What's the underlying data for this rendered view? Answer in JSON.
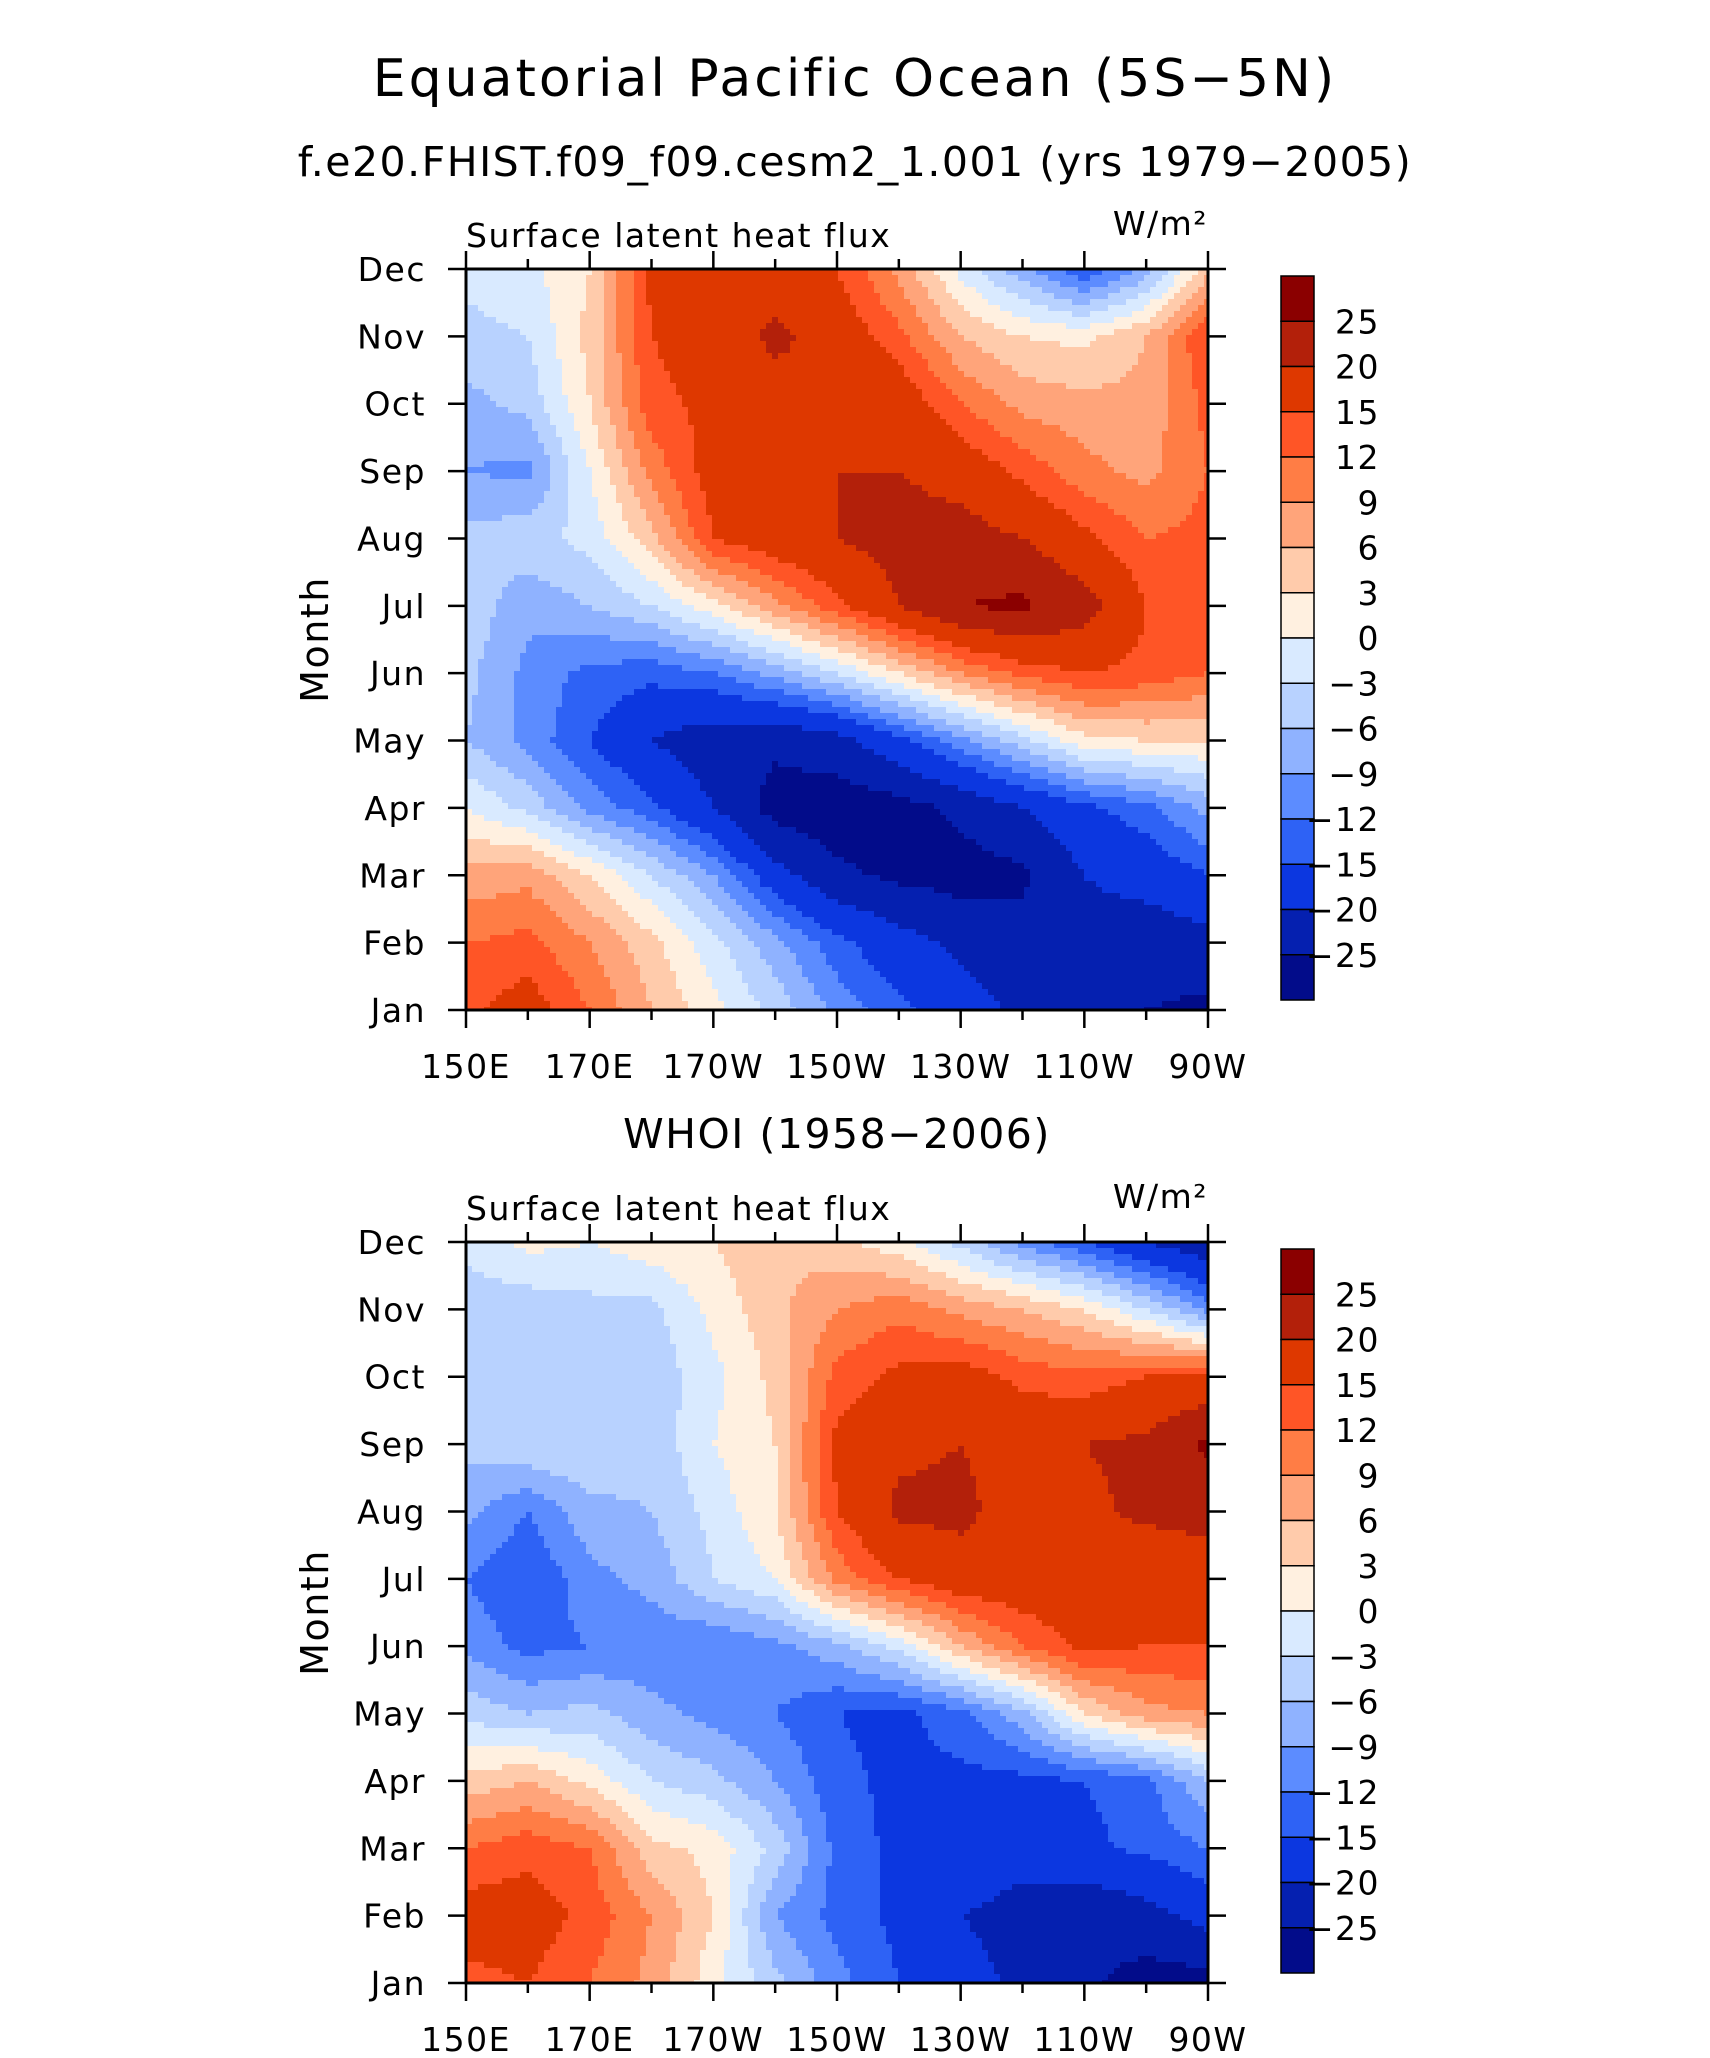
{
  "figure": {
    "title": "Equatorial Pacific Ocean (5S−5N)",
    "subtitle": "f.e20.FHIST.f09_f09.cesm2_1.001 (yrs 1979−2005)"
  },
  "chart_data": [
    {
      "type": "heatmap",
      "title": "",
      "left_label": "Surface latent heat flux",
      "right_label": "W/m²",
      "xlabel": "",
      "ylabel": "Month",
      "x_categories": [
        "150E",
        "170E",
        "170W",
        "150W",
        "130W",
        "110W",
        "90W"
      ],
      "x_positions": [
        150,
        170,
        190,
        210,
        230,
        250,
        270
      ],
      "xlim": [
        150,
        270
      ],
      "y_categories": [
        "Jan",
        "Feb",
        "Mar",
        "Apr",
        "May",
        "Jun",
        "Jul",
        "Aug",
        "Sep",
        "Oct",
        "Nov",
        "Dec"
      ],
      "colorbar_levels": [
        "25",
        "20",
        "15",
        "12",
        "9",
        "6",
        "3",
        "0",
        "−3",
        "−6",
        "−9",
        "−12",
        "−15",
        "−20",
        "−25"
      ],
      "colorbar_colors": [
        "#8b0000",
        "#b3200a",
        "#de3800",
        "#ff5526",
        "#ff7d45",
        "#ffa47a",
        "#ffcbab",
        "#fff0e0",
        "#d9eaff",
        "#b8d2ff",
        "#8fb2ff",
        "#5c8cff",
        "#2e62f5",
        "#0c37e0",
        "#0520b0",
        "#020c8a"
      ],
      "grid_x": [
        150,
        160,
        170,
        180,
        190,
        200,
        210,
        220,
        230,
        240,
        250,
        260,
        270
      ],
      "grid_y": [
        "Jan",
        "Feb",
        "Mar",
        "Apr",
        "May",
        "Jun",
        "Jul",
        "Aug",
        "Sep",
        "Oct",
        "Nov",
        "Dec"
      ],
      "values": [
        [
          14,
          17,
          12,
          6,
          1,
          -4,
          -10,
          -14,
          -18,
          -21,
          -24,
          -25,
          -26
        ],
        [
          12,
          13,
          9,
          4,
          -2,
          -8,
          -14,
          -18,
          -21,
          -23,
          -22,
          -23,
          -22
        ],
        [
          7,
          8,
          3,
          -3,
          -9,
          -18,
          -24,
          -26,
          -27,
          -26,
          -20,
          -18,
          -15
        ],
        [
          0,
          -4,
          -10,
          -14,
          -20,
          -27,
          -28,
          -27,
          -24,
          -20,
          -16,
          -13,
          -8
        ],
        [
          -6,
          -10,
          -15,
          -20,
          -23,
          -24,
          -22,
          -16,
          -10,
          -4,
          2,
          3,
          3
        ],
        [
          -5,
          -10,
          -13,
          -14,
          -12,
          -8,
          -3,
          3,
          9,
          13,
          15,
          14,
          12
        ],
        [
          -4,
          -8,
          -6,
          -3,
          2,
          8,
          14,
          20,
          25,
          26,
          22,
          15,
          12
        ],
        [
          -5,
          -4,
          -2,
          5,
          15,
          18,
          20,
          22,
          22,
          20,
          16,
          12,
          13
        ],
        [
          -9,
          -10,
          0,
          10,
          17,
          18,
          20,
          20,
          18,
          14,
          10,
          8,
          12
        ],
        [
          -7,
          -5,
          3,
          14,
          16,
          18,
          20,
          18,
          12,
          8,
          7,
          7,
          13
        ],
        [
          -4,
          -3,
          4,
          15,
          17,
          21,
          18,
          13,
          6,
          3,
          2,
          6,
          15
        ],
        [
          -2,
          -1,
          3,
          16,
          17,
          18,
          15,
          8,
          -1,
          -8,
          -15,
          -8,
          5
        ]
      ]
    },
    {
      "type": "heatmap",
      "title": "WHOI (1958−2006)",
      "left_label": "Surface latent heat flux",
      "right_label": "W/m²",
      "xlabel": "",
      "ylabel": "Month",
      "x_categories": [
        "150E",
        "170E",
        "170W",
        "150W",
        "130W",
        "110W",
        "90W"
      ],
      "x_positions": [
        150,
        170,
        190,
        210,
        230,
        250,
        270
      ],
      "xlim": [
        150,
        270
      ],
      "y_categories": [
        "Jan",
        "Feb",
        "Mar",
        "Apr",
        "May",
        "Jun",
        "Jul",
        "Aug",
        "Sep",
        "Oct",
        "Nov",
        "Dec"
      ],
      "colorbar_levels": [
        "25",
        "20",
        "15",
        "12",
        "9",
        "6",
        "3",
        "0",
        "−3",
        "−6",
        "−9",
        "−12",
        "−15",
        "−20",
        "−25"
      ],
      "colorbar_colors": [
        "#8b0000",
        "#b3200a",
        "#de3800",
        "#ff5526",
        "#ff7d45",
        "#ffa47a",
        "#ffcbab",
        "#fff0e0",
        "#d9eaff",
        "#b8d2ff",
        "#8fb2ff",
        "#5c8cff",
        "#2e62f5",
        "#0c37e0",
        "#0520b0",
        "#020c8a"
      ],
      "grid_x": [
        150,
        160,
        170,
        180,
        190,
        200,
        210,
        220,
        230,
        240,
        250,
        260,
        270
      ],
      "grid_y": [
        "Jan",
        "Feb",
        "Mar",
        "Apr",
        "May",
        "Jun",
        "Jul",
        "Aug",
        "Sep",
        "Oct",
        "Nov",
        "Dec"
      ],
      "values": [
        [
          14,
          15,
          12,
          8,
          1,
          -5,
          -11,
          -15,
          -18,
          -21,
          -24,
          -27,
          -27
        ],
        [
          17,
          17,
          14,
          9,
          3,
          -9,
          -13,
          -16,
          -20,
          -22,
          -24,
          -22,
          -18
        ],
        [
          12,
          14,
          12,
          4,
          2,
          -4,
          -13,
          -16,
          -16,
          -18,
          -16,
          -14,
          -12
        ],
        [
          4,
          6,
          2,
          -3,
          -5,
          -9,
          -14,
          -16,
          -16,
          -16,
          -15,
          -13,
          -6
        ],
        [
          -4,
          -6,
          -5,
          -8,
          -10,
          -12,
          -15,
          -16,
          -13,
          -7,
          3,
          8,
          9
        ],
        [
          -10,
          -13,
          -12,
          -11,
          -12,
          -10,
          -7,
          -2,
          6,
          12,
          16,
          15,
          15
        ],
        [
          -12,
          -15,
          -10,
          -8,
          -3,
          0,
          10,
          15,
          18,
          18,
          18,
          16,
          17
        ],
        [
          -8,
          -12,
          -7,
          -6,
          -2,
          3,
          15,
          21,
          21,
          18,
          19,
          21,
          22
        ],
        [
          -5,
          -3,
          -3,
          -5,
          0,
          3,
          16,
          19,
          20,
          18,
          20,
          21,
          26
        ],
        [
          -4,
          -3,
          -4,
          -5,
          -1,
          4,
          13,
          16,
          17,
          14,
          13,
          15,
          16
        ],
        [
          -5,
          -5,
          -4,
          -4,
          1,
          5,
          9,
          11,
          8,
          6,
          3,
          -3,
          -10
        ],
        [
          -2,
          1,
          0,
          2,
          3,
          6,
          4,
          1,
          -4,
          -10,
          -15,
          -20,
          -24
        ]
      ]
    }
  ]
}
